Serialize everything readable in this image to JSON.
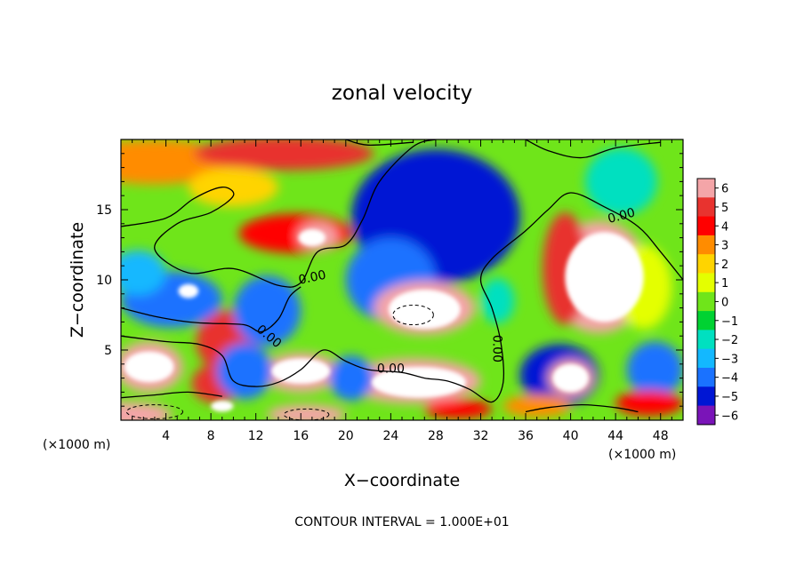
{
  "chart_data": {
    "type": "heatmap",
    "title": "zonal velocity",
    "xlabel": "X−coordinate",
    "ylabel": "Z−coordinate",
    "x_unit_note": "(×1000 m)",
    "y_unit_note": "(×1000 m)",
    "footer": "CONTOUR INTERVAL = 1.000E+01",
    "xlim": [
      0,
      50
    ],
    "ylim": [
      0,
      20
    ],
    "x_ticks": [
      4,
      8,
      12,
      16,
      20,
      24,
      28,
      32,
      36,
      40,
      44,
      48
    ],
    "y_ticks": [
      5,
      10,
      15
    ],
    "colorbar": {
      "levels": [
        6,
        5,
        4,
        3,
        2,
        1,
        0,
        -1,
        -2,
        -3,
        -4,
        -5,
        -6
      ],
      "colors": [
        "#f4a5a8",
        "#e8332f",
        "#ff0000",
        "#ff8c00",
        "#ffd400",
        "#e4ff00",
        "#6fe51a",
        "#00d232",
        "#00e0c0",
        "#13b8ff",
        "#1a72ff",
        "#0016d4",
        "#7a14b8"
      ]
    },
    "contour_labels": [
      {
        "text": "0.00",
        "x": 17.0,
        "y": 10.2,
        "rot": 12
      },
      {
        "text": "0.00",
        "x": 13.2,
        "y": 6.0,
        "rot": -40
      },
      {
        "text": "0.00",
        "x": 24.0,
        "y": 3.7,
        "rot": 0
      },
      {
        "text": "0.00",
        "x": 33.5,
        "y": 5.1,
        "rot": -90
      },
      {
        "text": "0.00",
        "x": 44.5,
        "y": 14.6,
        "rot": 15
      }
    ],
    "blobs": [
      {
        "x": 3.0,
        "y": 18.4,
        "rx": 7.0,
        "ry": 1.6,
        "v": 2.6
      },
      {
        "x": 14.5,
        "y": 19.0,
        "rx": 8.0,
        "ry": 1.2,
        "v": 5.0
      },
      {
        "x": 10.0,
        "y": 16.6,
        "rx": 4.0,
        "ry": 1.4,
        "v": 2.0
      },
      {
        "x": 28.0,
        "y": 14.5,
        "rx": 7.5,
        "ry": 4.8,
        "v": -5.0
      },
      {
        "x": 24.0,
        "y": 10.0,
        "rx": 4.0,
        "ry": 3.0,
        "v": -4.2
      },
      {
        "x": 44.5,
        "y": 17.0,
        "rx": 3.2,
        "ry": 2.4,
        "v": -2.2
      },
      {
        "x": 27.0,
        "y": 8.0,
        "rx": 4.5,
        "ry": 1.9,
        "v": 6.0
      },
      {
        "x": 42.5,
        "y": 10.2,
        "rx": 4.5,
        "ry": 4.0,
        "v": 6.0
      },
      {
        "x": 39.5,
        "y": 10.8,
        "rx": 2.0,
        "ry": 4.0,
        "v": 4.8
      },
      {
        "x": 15.5,
        "y": 13.3,
        "rx": 5.0,
        "ry": 1.4,
        "v": 4.2
      },
      {
        "x": 17.5,
        "y": 13.1,
        "rx": 1.8,
        "ry": 1.0,
        "v": 6.0
      },
      {
        "x": 9.5,
        "y": 5.6,
        "rx": 2.8,
        "ry": 2.2,
        "v": 5.0
      },
      {
        "x": 4.5,
        "y": 8.6,
        "rx": 4.5,
        "ry": 2.0,
        "v": -4.5
      },
      {
        "x": 1.5,
        "y": 10.5,
        "rx": 2.5,
        "ry": 1.6,
        "v": -3.5
      },
      {
        "x": 13.0,
        "y": 7.8,
        "rx": 3.0,
        "ry": 2.5,
        "v": -3.8
      },
      {
        "x": 2.5,
        "y": 3.8,
        "rx": 3.0,
        "ry": 1.8,
        "v": 6.0
      },
      {
        "x": 8.5,
        "y": 2.6,
        "rx": 2.2,
        "ry": 1.4,
        "v": 5.0
      },
      {
        "x": 16.0,
        "y": 3.4,
        "rx": 3.5,
        "ry": 1.4,
        "v": 6.0
      },
      {
        "x": 26.0,
        "y": 2.8,
        "rx": 6.0,
        "ry": 1.6,
        "v": 6.0
      },
      {
        "x": 11.0,
        "y": 3.5,
        "rx": 2.5,
        "ry": 2.0,
        "v": -4.0
      },
      {
        "x": 20.5,
        "y": 3.0,
        "rx": 2.0,
        "ry": 1.6,
        "v": -4.0
      },
      {
        "x": 39.0,
        "y": 3.2,
        "rx": 3.5,
        "ry": 2.2,
        "v": -4.8
      },
      {
        "x": 47.5,
        "y": 3.6,
        "rx": 2.5,
        "ry": 2.0,
        "v": -4.5
      },
      {
        "x": 40.0,
        "y": 3.0,
        "rx": 2.0,
        "ry": 1.3,
        "v": 6.0
      },
      {
        "x": 0.5,
        "y": 0.4,
        "rx": 4.0,
        "ry": 0.9,
        "v": 6.0
      },
      {
        "x": 16.5,
        "y": 0.4,
        "rx": 3.5,
        "ry": 0.7,
        "v": 6.0
      },
      {
        "x": 47.0,
        "y": 1.2,
        "rx": 3.0,
        "ry": 0.9,
        "v": 4.0
      },
      {
        "x": 37.0,
        "y": 1.0,
        "rx": 3.0,
        "ry": 0.8,
        "v": 3.0
      },
      {
        "x": 30.0,
        "y": 0.8,
        "rx": 3.0,
        "ry": 0.7,
        "v": 4.0
      },
      {
        "x": 33.5,
        "y": 8.5,
        "rx": 1.5,
        "ry": 1.6,
        "v": -2.0
      },
      {
        "x": 46.5,
        "y": 9.5,
        "rx": 2.5,
        "ry": 3.0,
        "v": 1.0
      }
    ],
    "white_regions": [
      {
        "x": 27.0,
        "y": 7.9,
        "rx": 3.2,
        "ry": 1.4
      },
      {
        "x": 43.0,
        "y": 10.2,
        "rx": 3.5,
        "ry": 3.2
      },
      {
        "x": 17.0,
        "y": 13.0,
        "rx": 1.2,
        "ry": 0.6
      },
      {
        "x": 6.0,
        "y": 9.2,
        "rx": 0.9,
        "ry": 0.5
      },
      {
        "x": 2.5,
        "y": 3.8,
        "rx": 2.2,
        "ry": 1.1
      },
      {
        "x": 16.0,
        "y": 3.5,
        "rx": 2.6,
        "ry": 0.9
      },
      {
        "x": 26.5,
        "y": 2.7,
        "rx": 4.2,
        "ry": 1.1
      },
      {
        "x": 40.0,
        "y": 3.0,
        "rx": 1.6,
        "ry": 1.0
      },
      {
        "x": 9.0,
        "y": 1.0,
        "rx": 1.0,
        "ry": 0.4
      }
    ],
    "zero_contours": [
      [
        [
          0,
          13.8
        ],
        [
          4,
          14.4
        ],
        [
          6.5,
          15.8
        ],
        [
          9,
          16.6
        ],
        [
          10,
          16.0
        ],
        [
          8,
          14.8
        ],
        [
          5,
          14.0
        ],
        [
          3,
          12.2
        ],
        [
          6,
          10.5
        ],
        [
          10,
          10.8
        ],
        [
          14,
          9.6
        ],
        [
          16,
          9.8
        ],
        [
          17.5,
          12.0
        ],
        [
          20,
          12.5
        ],
        [
          21.5,
          14.3
        ],
        [
          23,
          17.0
        ],
        [
          26,
          19.5
        ],
        [
          28,
          20.0
        ]
      ],
      [
        [
          0,
          8.0
        ],
        [
          3,
          7.4
        ],
        [
          6,
          7.0
        ],
        [
          8,
          6.9
        ],
        [
          11,
          6.8
        ],
        [
          12.5,
          6.3
        ],
        [
          14,
          7.2
        ],
        [
          15,
          8.8
        ],
        [
          16,
          9.5
        ]
      ],
      [
        [
          0,
          6.0
        ],
        [
          4,
          5.6
        ],
        [
          7,
          5.4
        ],
        [
          9,
          4.6
        ],
        [
          10,
          2.8
        ],
        [
          12,
          2.4
        ],
        [
          14,
          2.7
        ],
        [
          16,
          3.6
        ],
        [
          18,
          5.0
        ],
        [
          20,
          4.2
        ],
        [
          22,
          3.6
        ],
        [
          25,
          3.4
        ],
        [
          27,
          3.0
        ],
        [
          29,
          2.8
        ],
        [
          31,
          2.2
        ],
        [
          33,
          1.3
        ],
        [
          34,
          2.7
        ],
        [
          33.8,
          5.5
        ],
        [
          33,
          8.0
        ],
        [
          32,
          10.0
        ],
        [
          33,
          11.5
        ],
        [
          36,
          13.5
        ],
        [
          38,
          15.0
        ],
        [
          40,
          16.2
        ],
        [
          43,
          15.2
        ],
        [
          46,
          13.8
        ],
        [
          48,
          12.0
        ],
        [
          50,
          10.0
        ]
      ],
      [
        [
          0,
          1.6
        ],
        [
          3,
          1.8
        ],
        [
          6,
          2.0
        ],
        [
          9,
          1.7
        ]
      ],
      [
        [
          36,
          0.6
        ],
        [
          38,
          0.9
        ],
        [
          41,
          1.1
        ],
        [
          44,
          0.9
        ],
        [
          46,
          0.6
        ]
      ],
      [
        [
          20,
          20.0
        ],
        [
          22,
          19.6
        ],
        [
          26,
          19.8
        ]
      ],
      [
        [
          36,
          20.0
        ],
        [
          38,
          19.2
        ],
        [
          41,
          18.7
        ],
        [
          44,
          19.4
        ],
        [
          48,
          19.8
        ]
      ]
    ],
    "dashed_contours": [
      {
        "x": 26.0,
        "y": 7.5,
        "rx": 1.8,
        "ry": 0.7
      },
      {
        "x": 3.0,
        "y": 0.6,
        "rx": 2.5,
        "ry": 0.5
      },
      {
        "x": 16.5,
        "y": 0.4,
        "rx": 2.0,
        "ry": 0.4
      }
    ]
  }
}
